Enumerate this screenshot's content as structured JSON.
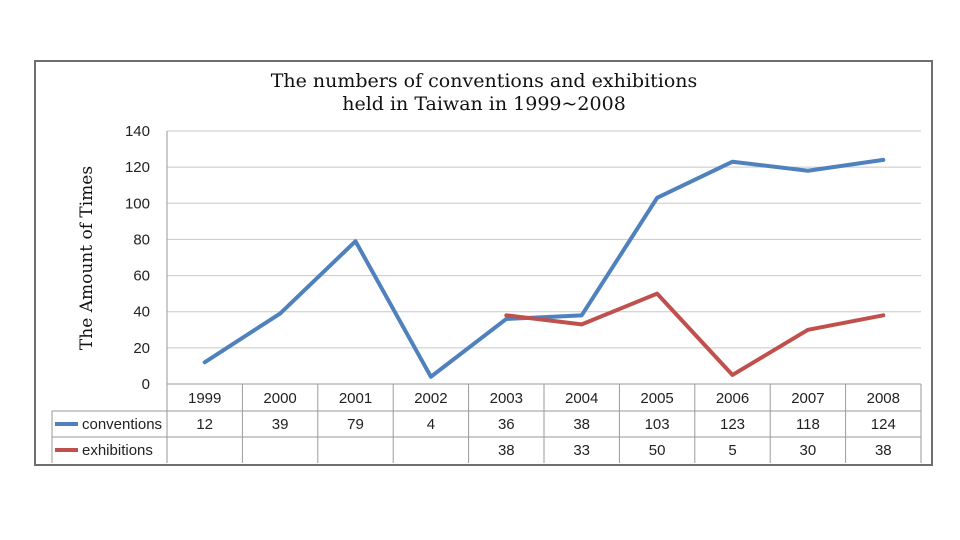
{
  "chart_data": {
    "type": "line",
    "title_lines": [
      "The numbers of conventions and exhibitions",
      "held in Taiwan in 1999~2008"
    ],
    "ylabel": "The Amount of Times",
    "ylim": [
      0,
      140
    ],
    "yticks": [
      0,
      20,
      40,
      60,
      80,
      100,
      120,
      140
    ],
    "grid": true,
    "legend": "data-table",
    "categories": [
      "1999",
      "2000",
      "2001",
      "2002",
      "2003",
      "2004",
      "2005",
      "2006",
      "2007",
      "2008"
    ],
    "series": [
      {
        "name": "conventions",
        "color": "#4f81bd",
        "values": [
          12,
          39,
          79,
          4,
          36,
          38,
          103,
          123,
          118,
          124
        ]
      },
      {
        "name": "exhibitions",
        "color": "#c0504d",
        "values": [
          null,
          null,
          null,
          null,
          38,
          33,
          50,
          5,
          30,
          38
        ]
      }
    ]
  }
}
